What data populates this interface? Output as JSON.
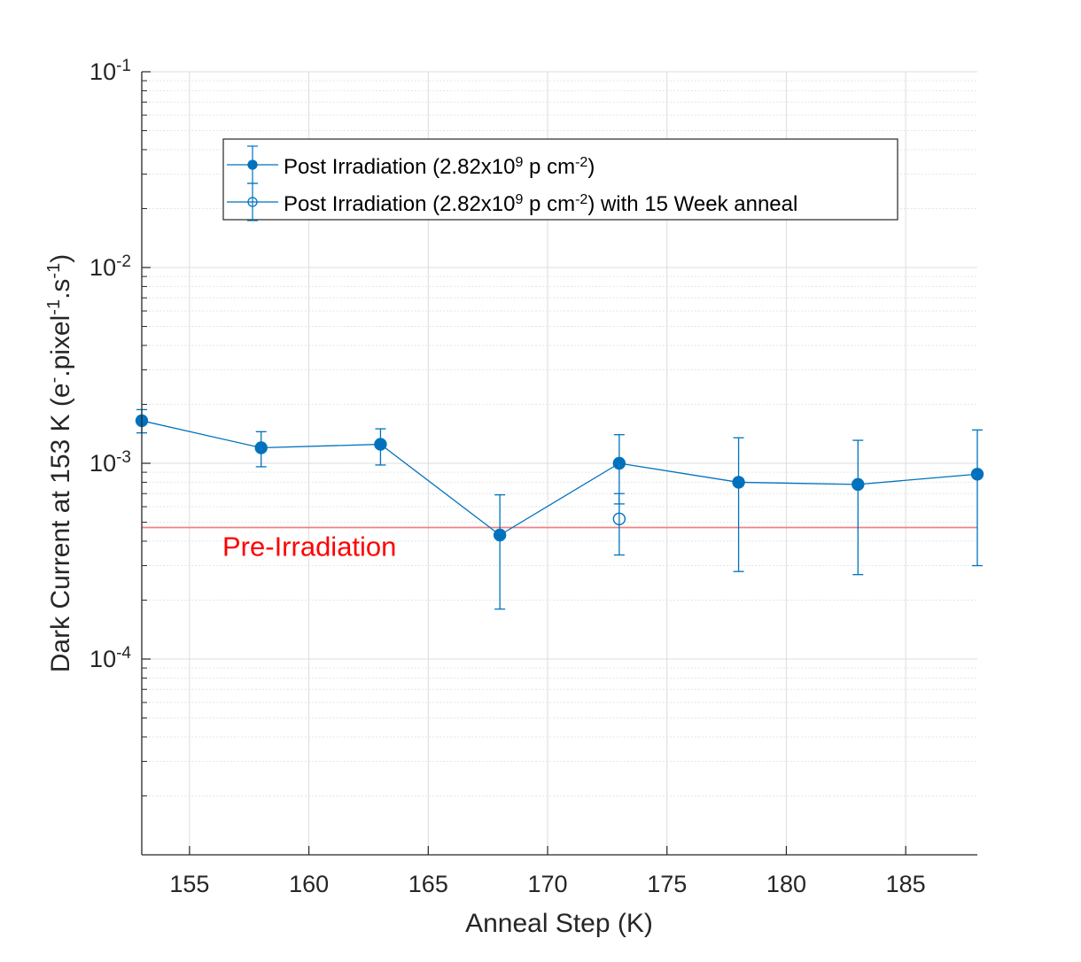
{
  "chart_data": {
    "type": "line",
    "title": "",
    "xlabel": "Anneal Step (K)",
    "ylabel_parts": {
      "prefix": "Dark Current at 153 K (e",
      "sup1": "-",
      "mid": ".pixel",
      "sup2": "-1",
      "mid2": ".s",
      "sup3": "-1",
      "suffix": ")"
    },
    "xscale": "linear",
    "yscale": "log",
    "xlim": [
      153,
      188
    ],
    "ylim": [
      1e-05,
      0.1
    ],
    "grid": true,
    "minor_grid": true,
    "x_ticks": [
      155,
      160,
      165,
      170,
      175,
      180,
      185
    ],
    "x_tick_labels": [
      "155",
      "160",
      "165",
      "170",
      "175",
      "180",
      "185"
    ],
    "y_ticks": [
      {
        "value": 0.0001,
        "base": "10",
        "exp": "-4"
      },
      {
        "value": 0.001,
        "base": "10",
        "exp": "-3"
      },
      {
        "value": 0.01,
        "base": "10",
        "exp": "-2"
      },
      {
        "value": 0.1,
        "base": "10",
        "exp": "-1"
      }
    ],
    "series": [
      {
        "name": "Post Irradiation (2.82x10^9 p cm^-2)",
        "legend_parts": {
          "a": "Post Irradiation (2.82x10",
          "s1": "9",
          "b": " p cm",
          "s2": "-2",
          "c": ")"
        },
        "color": "#0072BD",
        "marker": "filled-circle",
        "line": true,
        "x": [
          153,
          158,
          163,
          168,
          173,
          178,
          183,
          188
        ],
        "y": [
          0.00165,
          0.0012,
          0.00125,
          0.00043,
          0.001,
          0.0008,
          0.00078,
          0.00088
        ],
        "err_low": [
          0.00143,
          0.00096,
          0.00098,
          0.00018,
          0.00062,
          0.00028,
          0.00027,
          0.0003
        ],
        "err_high": [
          0.00188,
          0.00145,
          0.0015,
          0.00069,
          0.0014,
          0.00135,
          0.00131,
          0.00148
        ]
      },
      {
        "name": "Post Irradiation (2.82x10^9 p cm^-2) with 15 Week anneal",
        "legend_parts": {
          "a": "Post Irradiation (2.82x10",
          "s1": "9",
          "b": " p cm",
          "s2": "-2",
          "c": ") with 15 Week anneal"
        },
        "color": "#0072BD",
        "marker": "open-circle",
        "line": false,
        "x": [
          173
        ],
        "y": [
          0.00052
        ],
        "err_low": [
          0.00034
        ],
        "err_high": [
          0.0007
        ]
      }
    ],
    "reference_lines": [
      {
        "label": "Pre-Irradiation",
        "y": 0.00047,
        "color": "#FF0000",
        "line_color": "#F08080"
      }
    ],
    "legend_position": "top-left"
  }
}
